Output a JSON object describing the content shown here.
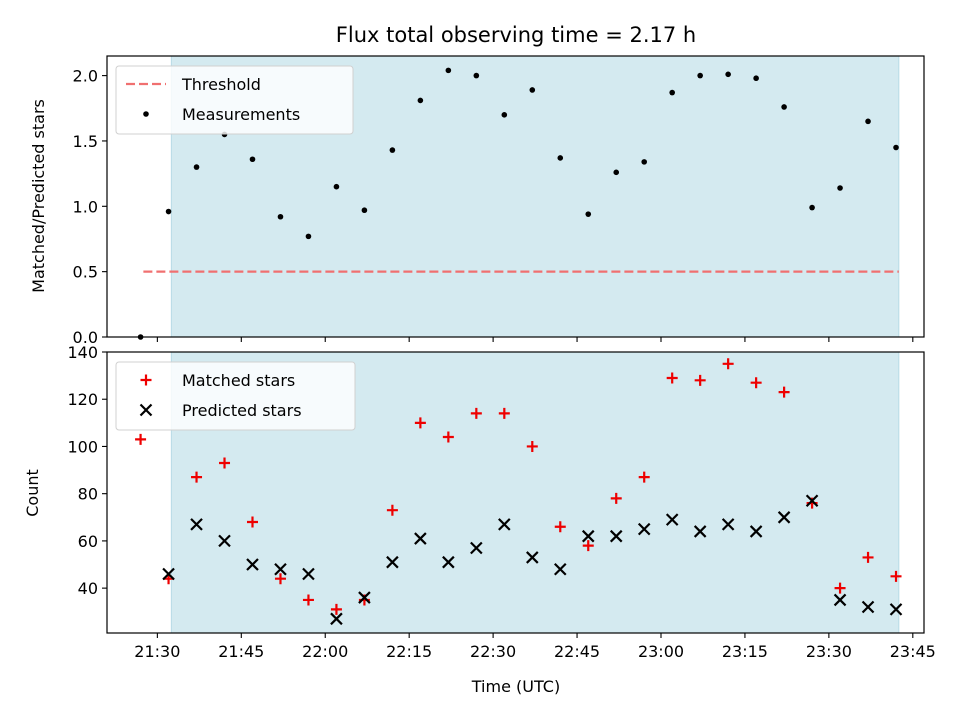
{
  "chart_data": [
    {
      "type": "scatter",
      "title": "Flux total observing time = 2.17 h",
      "ylabel": "Matched/Predicted stars",
      "xlabel": "",
      "ylim": [
        0,
        2.15
      ],
      "yticks": [
        0.0,
        0.5,
        1.0,
        1.5,
        2.0
      ],
      "ytick_labels": [
        "0.0",
        "0.5",
        "1.0",
        "1.5",
        "2.0"
      ],
      "xlim_minutes": [
        1281,
        1427
      ],
      "xticks_minutes": [
        1290,
        1305,
        1320,
        1335,
        1350,
        1365,
        1380,
        1395,
        1410,
        1425
      ],
      "shaded_region_minutes": [
        1292.5,
        1422.5
      ],
      "shaded_color": "#d4eaf0",
      "legend_position": "upper-left",
      "threshold": {
        "name": "Threshold",
        "value": 0.5,
        "x_range": [
          1287.5,
          1422.5
        ],
        "color": "#f07070"
      },
      "series": [
        {
          "name": "Measurements",
          "color": "#000000",
          "x": [
            "21:27",
            "21:32",
            "21:37",
            "21:42",
            "21:47",
            "21:52",
            "21:57",
            "22:02",
            "22:07",
            "22:12",
            "22:17",
            "22:22",
            "22:27",
            "22:32",
            "22:37",
            "22:42",
            "22:47",
            "22:52",
            "22:57",
            "23:02",
            "23:07",
            "23:12",
            "23:17",
            "23:22",
            "23:27",
            "23:32",
            "23:37",
            "23:42"
          ],
          "values": [
            0.0,
            0.96,
            1.3,
            1.55,
            1.36,
            0.92,
            0.77,
            1.15,
            0.97,
            1.43,
            1.81,
            2.04,
            2.0,
            1.7,
            1.89,
            1.37,
            0.94,
            1.26,
            1.34,
            1.87,
            2.0,
            2.01,
            1.98,
            1.76,
            0.99,
            1.14,
            1.65,
            1.45
          ]
        }
      ]
    },
    {
      "type": "scatter",
      "title": "",
      "ylabel": "Count",
      "xlabel": "Time (UTC)",
      "ylim": [
        21,
        140
      ],
      "yticks": [
        40,
        60,
        80,
        100,
        120,
        140
      ],
      "ytick_labels": [
        "40",
        "60",
        "80",
        "100",
        "120",
        "140"
      ],
      "xlim_minutes": [
        1281,
        1427
      ],
      "xticks_minutes": [
        1290,
        1305,
        1320,
        1335,
        1350,
        1365,
        1380,
        1395,
        1410,
        1425
      ],
      "xtick_labels": [
        "21:30",
        "21:45",
        "22:00",
        "22:15",
        "22:30",
        "22:45",
        "23:00",
        "23:15",
        "23:30",
        "23:45"
      ],
      "shaded_region_minutes": [
        1292.5,
        1422.5
      ],
      "shaded_color": "#d4eaf0",
      "legend_position": "upper-left",
      "series": [
        {
          "name": "Matched stars",
          "marker": "plus",
          "color": "#ee0000",
          "x": [
            "21:27",
            "21:32",
            "21:37",
            "21:42",
            "21:47",
            "21:52",
            "21:57",
            "22:02",
            "22:07",
            "22:12",
            "22:17",
            "22:22",
            "22:27",
            "22:32",
            "22:37",
            "22:42",
            "22:47",
            "22:52",
            "22:57",
            "23:02",
            "23:07",
            "23:12",
            "23:17",
            "23:22",
            "23:27",
            "23:32",
            "23:37",
            "23:42"
          ],
          "values": [
            103,
            44,
            87,
            93,
            68,
            44,
            35,
            31,
            35,
            73,
            110,
            104,
            114,
            114,
            100,
            66,
            58,
            78,
            87,
            129,
            128,
            135,
            127,
            123,
            76,
            40,
            53,
            45
          ]
        },
        {
          "name": "Predicted stars",
          "marker": "x",
          "color": "#000000",
          "x": [
            "21:32",
            "21:37",
            "21:42",
            "21:47",
            "21:52",
            "21:57",
            "22:02",
            "22:07",
            "22:12",
            "22:17",
            "22:22",
            "22:27",
            "22:32",
            "22:37",
            "22:42",
            "22:47",
            "22:52",
            "22:57",
            "23:02",
            "23:07",
            "23:12",
            "23:17",
            "23:22",
            "23:27",
            "23:32",
            "23:37",
            "23:42"
          ],
          "values": [
            46,
            67,
            60,
            50,
            48,
            46,
            27,
            36,
            51,
            61,
            51,
            57,
            67,
            53,
            48,
            62,
            62,
            65,
            69,
            64,
            67,
            64,
            70,
            77,
            35,
            32,
            31
          ]
        }
      ]
    }
  ]
}
